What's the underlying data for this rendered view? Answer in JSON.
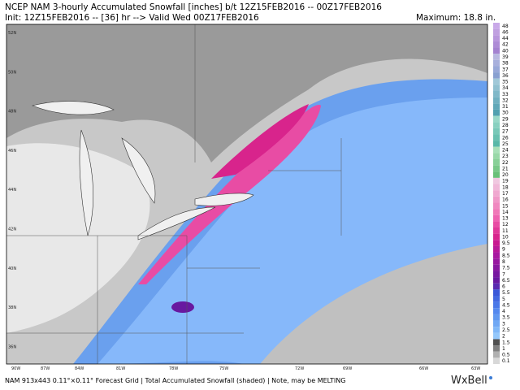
{
  "header": {
    "line1": "NCEP NAM 3-hourly Accumulated Snowfall [inches] b/t 12Z15FEB2016 -- 00Z17FEB2016",
    "line2": "Init: 12Z15FEB2016 -- [36] hr --> Valid Wed 00Z17FEB2016",
    "maximum": "Maximum: 18.8 in."
  },
  "map": {
    "lat_labels": [
      "52N",
      "50N",
      "48N",
      "46N",
      "44N",
      "42N",
      "40N",
      "38N",
      "36N"
    ],
    "lon_labels": [
      "90W",
      "87W",
      "84W",
      "81W",
      "78W",
      "75W",
      "72W",
      "69W",
      "66W",
      "63W"
    ]
  },
  "colorbar": {
    "levels": [
      {
        "value": 48,
        "color": "#c9a9e8"
      },
      {
        "value": 46,
        "color": "#c0a0e0"
      },
      {
        "value": 44,
        "color": "#b896dc"
      },
      {
        "value": 42,
        "color": "#ae8cd6"
      },
      {
        "value": 40,
        "color": "#a482d0"
      },
      {
        "value": 39,
        "color": "#b8b8e0"
      },
      {
        "value": 38,
        "color": "#a8b0dc"
      },
      {
        "value": 37,
        "color": "#98a8d8"
      },
      {
        "value": 36,
        "color": "#88a0d0"
      },
      {
        "value": 35,
        "color": "#a0c8d8"
      },
      {
        "value": 34,
        "color": "#90c0d0"
      },
      {
        "value": 33,
        "color": "#80b8c8"
      },
      {
        "value": 32,
        "color": "#70b0c0"
      },
      {
        "value": 31,
        "color": "#60a8b8"
      },
      {
        "value": 30,
        "color": "#50a0b0"
      },
      {
        "value": 29,
        "color": "#98d8c8"
      },
      {
        "value": 28,
        "color": "#88d0c0"
      },
      {
        "value": 27,
        "color": "#78c8b8"
      },
      {
        "value": 26,
        "color": "#68c0b0"
      },
      {
        "value": 25,
        "color": "#58b8a8"
      },
      {
        "value": 24,
        "color": "#a8e0b8"
      },
      {
        "value": 23,
        "color": "#98d8a8"
      },
      {
        "value": 22,
        "color": "#88d098"
      },
      {
        "value": 21,
        "color": "#78c888"
      },
      {
        "value": 20,
        "color": "#68c078"
      },
      {
        "value": 19,
        "color": "#f0c8e0"
      },
      {
        "value": 18,
        "color": "#f0b8d8"
      },
      {
        "value": 17,
        "color": "#f0a8d0"
      },
      {
        "value": 16,
        "color": "#f098c8"
      },
      {
        "value": 15,
        "color": "#f088c0"
      },
      {
        "value": 14,
        "color": "#f078b8"
      },
      {
        "value": 13,
        "color": "#ee62b0"
      },
      {
        "value": 12,
        "color": "#e84ca4"
      },
      {
        "value": 11,
        "color": "#e03898"
      },
      {
        "value": 10,
        "color": "#d8248c"
      },
      {
        "value": 9.5,
        "color": "#c81890"
      },
      {
        "value": 9,
        "color": "#b81898"
      },
      {
        "value": 8.5,
        "color": "#a818a0"
      },
      {
        "value": 8,
        "color": "#9818a0"
      },
      {
        "value": 7.5,
        "color": "#8818a0"
      },
      {
        "value": 7,
        "color": "#7818a0"
      },
      {
        "value": 6.5,
        "color": "#6818a0"
      },
      {
        "value": 6,
        "color": "#5a2ab0"
      },
      {
        "value": 5.5,
        "color": "#3a58d8"
      },
      {
        "value": 5,
        "color": "#4268e0"
      },
      {
        "value": 4.5,
        "color": "#4a78e8"
      },
      {
        "value": 4,
        "color": "#5488ee"
      },
      {
        "value": 3.5,
        "color": "#6098f0"
      },
      {
        "value": 3,
        "color": "#70a8f4"
      },
      {
        "value": 2.5,
        "color": "#80b8f8"
      },
      {
        "value": 2,
        "color": "#94c8fc"
      },
      {
        "value": 1.5,
        "color": "#505050"
      },
      {
        "value": 1,
        "color": "#808080"
      },
      {
        "value": 0.5,
        "color": "#b0b0b0"
      },
      {
        "value": 0.1,
        "color": "#d8d8d8"
      }
    ]
  },
  "footer": {
    "info": "NAM 913x443 0.11°×0.11° Forecast Grid | Total Accumulated Snowfall (shaded) | Note, may be MELTING",
    "brand": "WxBell"
  }
}
